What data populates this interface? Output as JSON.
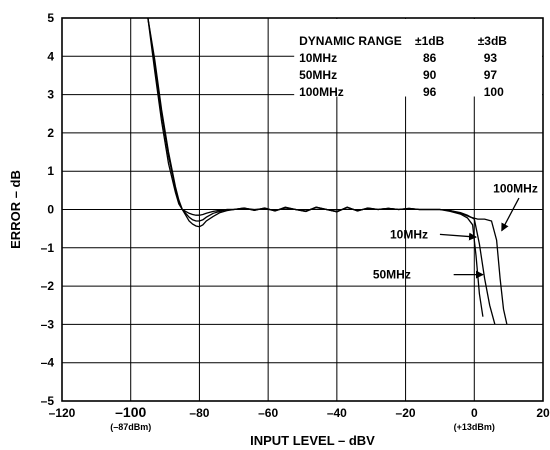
{
  "chart_data": {
    "type": "line",
    "xlabel": "INPUT LEVEL – dBV",
    "ylabel": "ERROR – dB",
    "xlim": [
      -120,
      20
    ],
    "ylim": [
      -5,
      5
    ],
    "grid": true,
    "x_ticks": [
      "–120",
      "–100",
      "–80",
      "–60",
      "–40",
      "–20",
      "0",
      "20"
    ],
    "y_ticks": [
      "5",
      "4",
      "3",
      "2",
      "1",
      "0",
      "–1",
      "–2",
      "–3",
      "–4",
      "–5"
    ],
    "x_sublabels": [
      {
        "x": -100,
        "text": "(–87dBm)"
      },
      {
        "x": 0,
        "text": "(+13dBm)"
      }
    ],
    "series": [
      {
        "name": "10MHz",
        "x": [
          -95,
          -93,
          -91,
          -89,
          -87,
          -86,
          -85,
          -84,
          -83,
          -82,
          -81,
          -80,
          -79,
          -78,
          -76,
          -74,
          -72,
          -70,
          -67,
          -64,
          -61,
          -58,
          -55,
          -52,
          -49,
          -46,
          -43,
          -40,
          -37,
          -34,
          -31,
          -28,
          -25,
          -22,
          -19,
          -16,
          -13,
          -10,
          -7,
          -4,
          -2,
          -0.5,
          0.5,
          1.5,
          2.5
        ],
        "y": [
          5.0,
          3.9,
          2.6,
          1.5,
          0.6,
          0.25,
          0.0,
          -0.15,
          -0.3,
          -0.38,
          -0.43,
          -0.45,
          -0.4,
          -0.3,
          -0.18,
          -0.08,
          -0.03,
          0.0,
          0.03,
          0.0,
          0.02,
          -0.03,
          0.04,
          0.0,
          -0.04,
          0.05,
          0.0,
          -0.05,
          0.05,
          -0.03,
          0.03,
          0.0,
          0.03,
          0.0,
          0.02,
          0.0,
          0.0,
          0.0,
          -0.05,
          -0.12,
          -0.22,
          -0.4,
          -1.2,
          -2.2,
          -2.8
        ]
      },
      {
        "name": "50MHz",
        "x": [
          -95,
          -93,
          -91,
          -89,
          -87,
          -86,
          -85,
          -84,
          -83,
          -82,
          -81,
          -80,
          -79,
          -78,
          -76,
          -74,
          -72,
          -70,
          -67,
          -64,
          -61,
          -58,
          -55,
          -52,
          -49,
          -46,
          -43,
          -40,
          -37,
          -34,
          -31,
          -28,
          -25,
          -22,
          -19,
          -16,
          -13,
          -10,
          -7,
          -4,
          -2,
          0,
          1.5,
          3,
          4.5,
          6
        ],
        "y": [
          5.0,
          3.8,
          2.5,
          1.4,
          0.55,
          0.2,
          0.0,
          -0.1,
          -0.2,
          -0.27,
          -0.3,
          -0.3,
          -0.27,
          -0.2,
          -0.1,
          -0.05,
          0.0,
          0.0,
          0.04,
          -0.02,
          0.04,
          -0.04,
          0.05,
          0.0,
          -0.05,
          0.06,
          0.0,
          -0.06,
          0.06,
          -0.04,
          0.04,
          0.0,
          0.03,
          0.0,
          0.03,
          0.0,
          0.0,
          0.0,
          -0.03,
          -0.08,
          -0.15,
          -0.25,
          -0.9,
          -1.8,
          -2.5,
          -3.0
        ]
      },
      {
        "name": "100MHz",
        "x": [
          -95,
          -93,
          -91,
          -89,
          -87,
          -86,
          -85,
          -84,
          -83,
          -82,
          -81,
          -80,
          -79,
          -78,
          -76,
          -74,
          -72,
          -70,
          -67,
          -64,
          -61,
          -58,
          -55,
          -52,
          -49,
          -46,
          -43,
          -40,
          -37,
          -34,
          -31,
          -28,
          -25,
          -22,
          -19,
          -16,
          -13,
          -10,
          -7,
          -4,
          -1,
          1,
          3,
          5,
          6.5,
          7.5,
          8.5,
          9.5
        ],
        "y": [
          5.0,
          3.6,
          2.3,
          1.2,
          0.45,
          0.15,
          0.0,
          -0.05,
          -0.1,
          -0.13,
          -0.15,
          -0.15,
          -0.13,
          -0.1,
          -0.05,
          -0.02,
          0.0,
          0.0,
          0.04,
          -0.02,
          0.04,
          -0.04,
          0.06,
          0.0,
          -0.05,
          0.06,
          0.0,
          -0.06,
          0.06,
          -0.04,
          0.04,
          0.0,
          0.03,
          0.0,
          0.03,
          0.0,
          0.0,
          0.0,
          -0.03,
          -0.1,
          -0.2,
          -0.25,
          -0.25,
          -0.3,
          -0.8,
          -1.8,
          -2.6,
          -3.0
        ]
      }
    ],
    "annotations": [
      {
        "text": "10MHz",
        "label_x": -19,
        "label_y": -0.65,
        "arrow_from": [
          -10,
          -0.65
        ],
        "arrow_to": [
          0.5,
          -0.72
        ]
      },
      {
        "text": "50MHz",
        "label_x": -24,
        "label_y": -1.7,
        "arrow_from": [
          -6,
          -1.7
        ],
        "arrow_to": [
          2.5,
          -1.7
        ]
      },
      {
        "text": "100MHz",
        "label_x": 12,
        "label_y": 0.55,
        "arrow_from": [
          13,
          0.3
        ],
        "arrow_to": [
          8,
          -0.55
        ]
      }
    ],
    "table": {
      "headers": [
        "DYNAMIC RANGE",
        "±1dB",
        "±3dB"
      ],
      "rows": [
        [
          "10MHz",
          "86",
          "93"
        ],
        [
          "50MHz",
          "90",
          "97"
        ],
        [
          "100MHz",
          "96",
          "100"
        ]
      ]
    }
  }
}
